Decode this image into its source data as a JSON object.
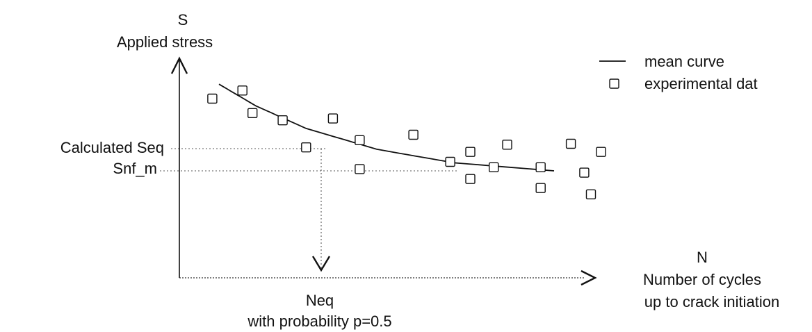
{
  "chart_data": {
    "type": "scatter",
    "title": "",
    "y_axis": {
      "symbol": "S",
      "label": "Applied stress"
    },
    "x_axis": {
      "symbol": "N",
      "label_line1": "Number of cycles",
      "label_line2": "up to crack initiation"
    },
    "grid": false,
    "legend": {
      "placement": "top-right",
      "line_label": "mean curve",
      "marker_label": "experimental dat"
    },
    "reference_lines": {
      "seq_label": "Calculated Seq",
      "snf_label": "Snf_m",
      "neq_label": "Neq",
      "probability_label": "with probability p=0.5"
    },
    "series": [
      {
        "name": "mean curve",
        "kind": "line",
        "shape": "decaying exponential from high stress at low cycles to the Snf_m level",
        "relative_points": [
          [
            0.0,
            0.96
          ],
          [
            0.11,
            0.72
          ],
          [
            0.26,
            0.47
          ],
          [
            0.47,
            0.24
          ],
          [
            0.7,
            0.09
          ],
          [
            1.0,
            0.0
          ]
        ]
      },
      {
        "name": "experimental dat",
        "kind": "markers",
        "marker": "open-square",
        "relative_points": [
          [
            -0.02,
            0.8
          ],
          [
            0.07,
            0.89
          ],
          [
            0.1,
            0.64
          ],
          [
            0.19,
            0.56
          ],
          [
            0.26,
            0.26
          ],
          [
            0.34,
            0.58
          ],
          [
            0.42,
            0.34
          ],
          [
            0.42,
            0.02
          ],
          [
            0.58,
            0.4
          ],
          [
            0.69,
            0.1
          ],
          [
            0.75,
            0.21
          ],
          [
            0.75,
            -0.09
          ],
          [
            0.82,
            0.04
          ],
          [
            0.86,
            0.29
          ],
          [
            0.96,
            0.04
          ],
          [
            0.96,
            -0.19
          ],
          [
            1.05,
            0.3
          ],
          [
            1.09,
            -0.02
          ],
          [
            1.11,
            -0.26
          ],
          [
            1.14,
            0.21
          ]
        ]
      }
    ]
  }
}
